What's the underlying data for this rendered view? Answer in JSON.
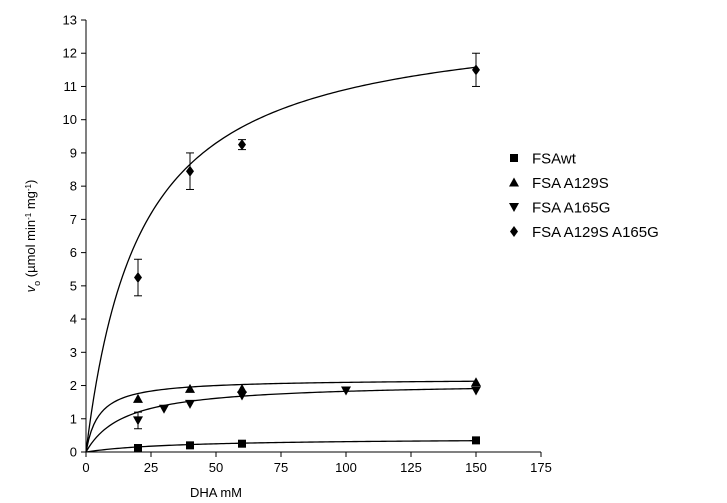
{
  "chart_data": {
    "type": "scatter",
    "xlabel": "DHA mM",
    "ylabel": {
      "var": "v",
      "sub": "o",
      "pre": " (µmol min",
      "sup1": "-1",
      "mid": " mg",
      "sup2": "-1",
      "post": ")"
    },
    "xlim": [
      0,
      175
    ],
    "ylim": [
      0,
      13
    ],
    "x_ticks": [
      "0",
      "25",
      "50",
      "75",
      "100",
      "125",
      "150",
      "175"
    ],
    "y_ticks": [
      "0",
      "1",
      "2",
      "3",
      "4",
      "5",
      "6",
      "7",
      "8",
      "9",
      "10",
      "11",
      "12",
      "13"
    ],
    "grid": false,
    "legend_position": "right",
    "series": [
      {
        "name": "FSAwt",
        "marker": "square",
        "points": [
          {
            "x": 20,
            "y": 0.12
          },
          {
            "x": 40,
            "y": 0.2
          },
          {
            "x": 60,
            "y": 0.25
          },
          {
            "x": 150,
            "y": 0.35
          }
        ],
        "fit": {
          "vmax": 0.42,
          "km": 35
        }
      },
      {
        "name": "FSA A129S",
        "marker": "triangle-up",
        "points": [
          {
            "x": 20,
            "y": 1.6
          },
          {
            "x": 40,
            "y": 1.9
          },
          {
            "x": 60,
            "y": 1.9
          },
          {
            "x": 150,
            "y": 2.1
          }
        ],
        "fit": {
          "vmax": 2.2,
          "km": 5
        }
      },
      {
        "name": "FSA A165G",
        "marker": "triangle-down",
        "points": [
          {
            "x": 20,
            "y": 0.95,
            "err": 0.25
          },
          {
            "x": 30,
            "y": 1.3
          },
          {
            "x": 40,
            "y": 1.45
          },
          {
            "x": 60,
            "y": 1.7
          },
          {
            "x": 100,
            "y": 1.85
          },
          {
            "x": 150,
            "y": 1.85
          }
        ],
        "fit": {
          "vmax": 2.1,
          "km": 15
        }
      },
      {
        "name": "FSA A129S A165G",
        "marker": "diamond",
        "points": [
          {
            "x": 20,
            "y": 5.25,
            "err": 0.55
          },
          {
            "x": 40,
            "y": 8.45,
            "err": 0.55
          },
          {
            "x": 60,
            "y": 9.25,
            "err": 0.15
          },
          {
            "x": 150,
            "y": 11.5,
            "err": 0.5
          }
        ],
        "fit": {
          "vmax": 13.2,
          "km": 21
        }
      }
    ]
  }
}
